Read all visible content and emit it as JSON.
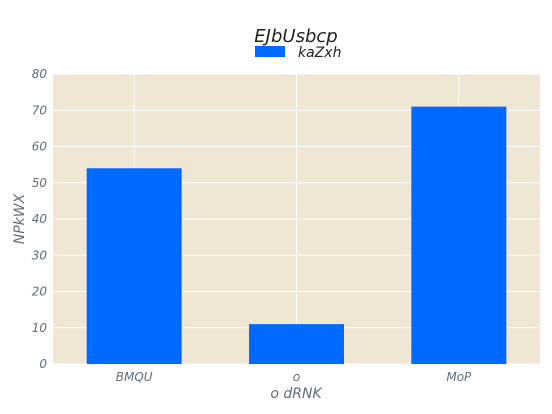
{
  "chart_data": {
    "type": "bar",
    "title": "EJbUsbcp",
    "xlabel": "o dRNK",
    "ylabel": "NPkWX",
    "categories": [
      "BMQU",
      "o",
      "MoP"
    ],
    "series": [
      {
        "name": "kaZxh",
        "values": [
          54,
          11,
          71
        ]
      }
    ],
    "ylim": [
      0,
      80
    ],
    "yticks": [
      0,
      10,
      20,
      30,
      40,
      50,
      60,
      70,
      80
    ],
    "grid": true,
    "legend_position": "top-center",
    "colors": {
      "plot_background": "#efe6d3",
      "grid": "#ffffff",
      "bar": "#0069ff",
      "text": "#5f6e7a"
    }
  }
}
